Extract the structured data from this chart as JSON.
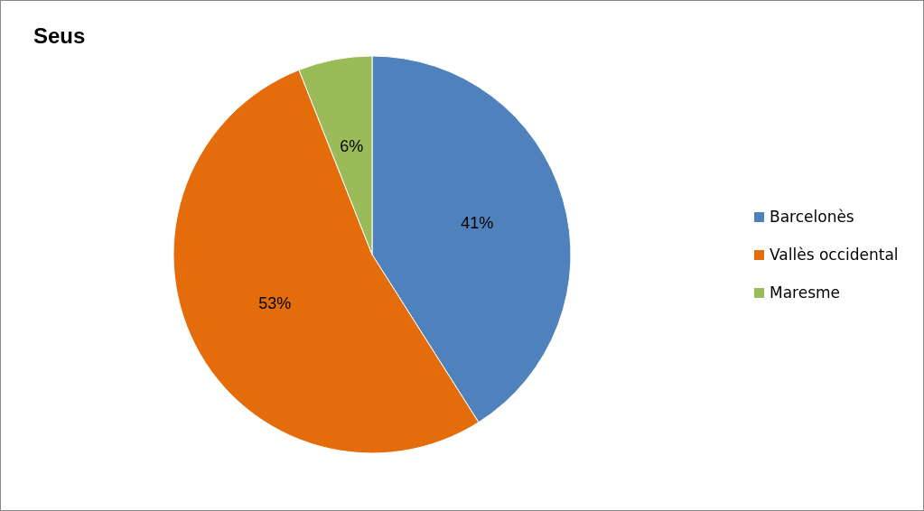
{
  "chart_data": {
    "type": "pie",
    "title": "Seus",
    "categories": [
      "Barcelonès",
      "Vallès occidental",
      "Maresme"
    ],
    "values": [
      41,
      53,
      6
    ],
    "colors": [
      "#4f81bd",
      "#e46c0a",
      "#9bbb59"
    ],
    "value_labels": [
      "41%",
      "53%",
      "6%"
    ],
    "legend": "right"
  }
}
